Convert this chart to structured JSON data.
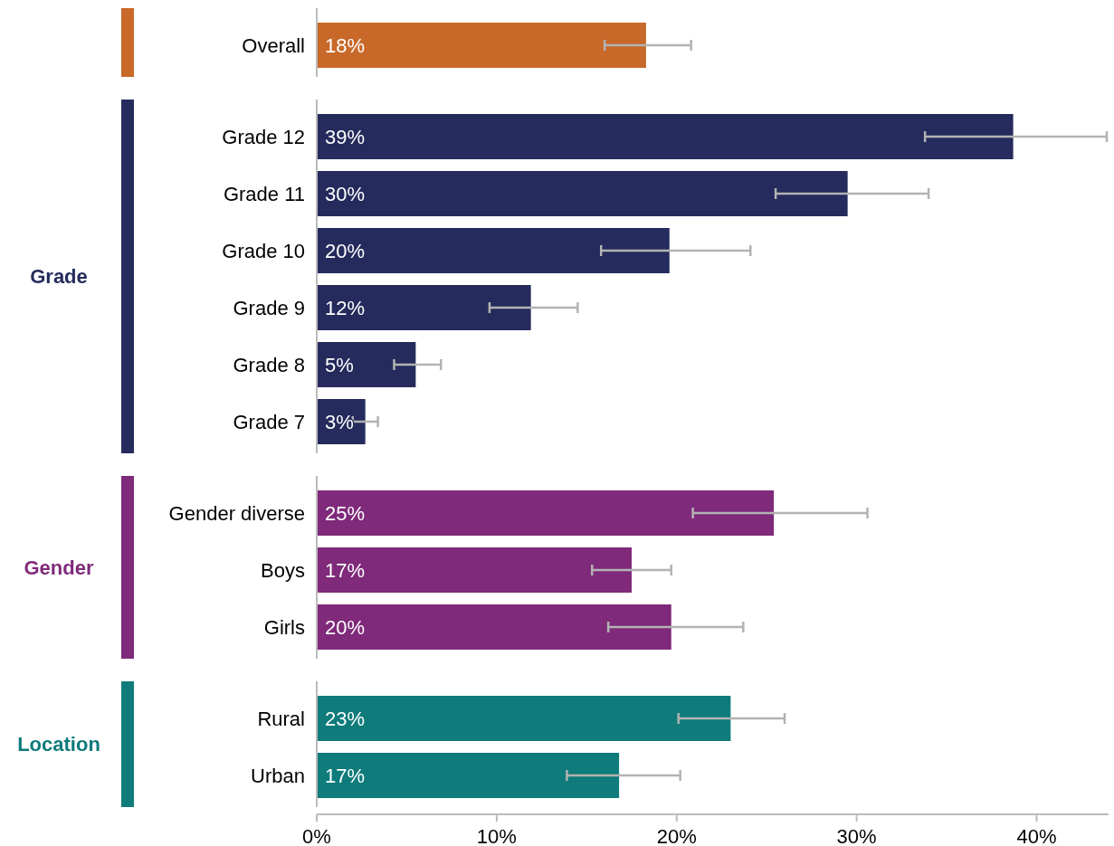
{
  "chart_data": {
    "type": "bar",
    "orientation": "horizontal",
    "categories": [
      "Overall",
      "Grade 12",
      "Grade 11",
      "Grade 10",
      "Grade 9",
      "Grade 8",
      "Grade 7",
      "Gender diverse",
      "Boys",
      "Girls",
      "Rural",
      "Urban"
    ],
    "series": [
      {
        "color": "#c8692a",
        "values": [
          18.3,
          null,
          null,
          null,
          null,
          null,
          null,
          null,
          null,
          null,
          null,
          null
        ],
        "errors": [
          [
            16.0,
            20.8
          ],
          null,
          null,
          null,
          null,
          null,
          null,
          null,
          null,
          null,
          null,
          null
        ],
        "value_labels": [
          "18%",
          null,
          null,
          null,
          null,
          null,
          null,
          null,
          null,
          null,
          null,
          null
        ]
      },
      {
        "name": "Grade",
        "color": "#252b5c",
        "values": [
          null,
          38.7,
          29.5,
          19.6,
          11.9,
          5.5,
          2.7,
          null,
          null,
          null,
          null,
          null
        ],
        "errors": [
          null,
          [
            33.8,
            43.9
          ],
          [
            25.5,
            34.0
          ],
          [
            15.8,
            24.1
          ],
          [
            9.6,
            14.5
          ],
          [
            4.3,
            6.9
          ],
          [
            2.0,
            3.4
          ],
          null,
          null,
          null,
          null,
          null
        ],
        "value_labels": [
          null,
          "39%",
          "30%",
          "20%",
          "12%",
          "5%",
          "3%",
          null,
          null,
          null,
          null,
          null
        ]
      },
      {
        "name": "Gender",
        "color": "#7f2a7a",
        "values": [
          null,
          null,
          null,
          null,
          null,
          null,
          null,
          25.4,
          17.5,
          19.7,
          null,
          null
        ],
        "errors": [
          null,
          null,
          null,
          null,
          null,
          null,
          null,
          [
            20.9,
            30.6
          ],
          [
            15.3,
            19.7
          ],
          [
            16.2,
            23.7
          ],
          null,
          null
        ],
        "value_labels": [
          null,
          null,
          null,
          null,
          null,
          null,
          null,
          "25%",
          "17%",
          "20%",
          null,
          null
        ]
      },
      {
        "name": "Location",
        "color": "#0f7b7b",
        "values": [
          null,
          null,
          null,
          null,
          null,
          null,
          null,
          null,
          null,
          null,
          23.0,
          16.8
        ],
        "errors": [
          null,
          null,
          null,
          null,
          null,
          null,
          null,
          null,
          null,
          null,
          [
            20.1,
            26.0
          ],
          [
            13.9,
            20.2
          ]
        ],
        "value_labels": [
          null,
          null,
          null,
          null,
          null,
          null,
          null,
          null,
          null,
          null,
          "23%",
          "17%"
        ]
      }
    ],
    "xlim": [
      0,
      44
    ],
    "xticks": [
      {
        "value": 0,
        "label": "0%"
      },
      {
        "value": 10,
        "label": "10%"
      },
      {
        "value": 20,
        "label": "20%"
      },
      {
        "value": 30,
        "label": "30%"
      },
      {
        "value": 40,
        "label": "40%"
      }
    ],
    "grid": false
  }
}
